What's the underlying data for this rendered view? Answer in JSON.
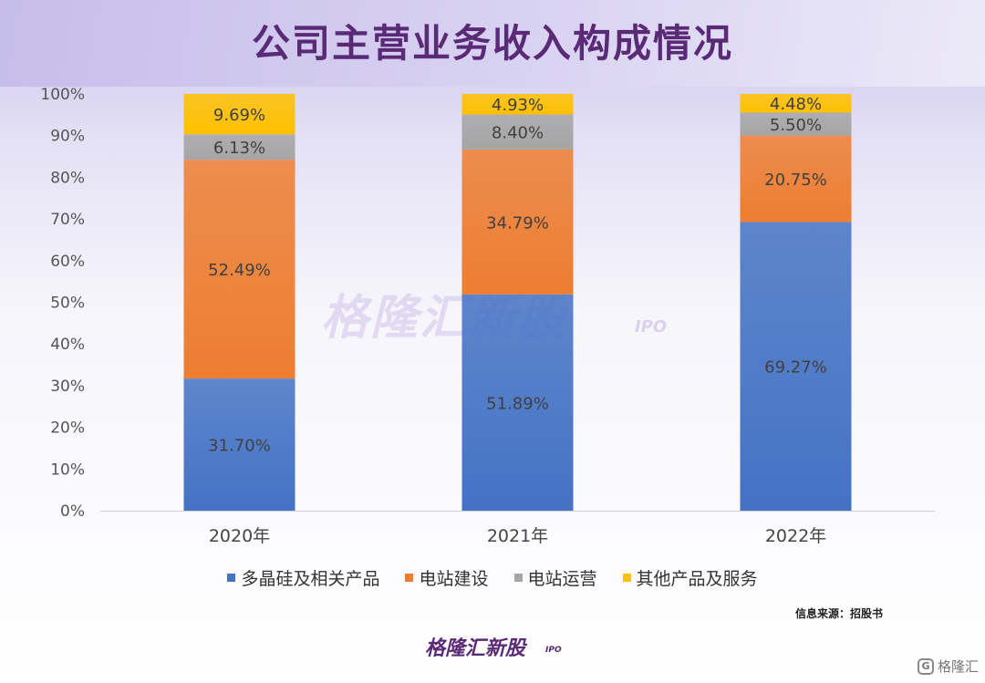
{
  "title": "公司主营业务收入构成情况",
  "chart_data": {
    "type": "bar",
    "stacked": true,
    "categories": [
      "2020年",
      "2021年",
      "2022年"
    ],
    "series": [
      {
        "name": "多晶硅及相关产品",
        "values": [
          31.7,
          51.89,
          69.27
        ],
        "color": "#4472c4",
        "labels": [
          "31.70%",
          "51.89%",
          "69.27%"
        ]
      },
      {
        "name": "电站建设",
        "values": [
          52.49,
          34.79,
          20.75
        ],
        "color": "#ed7d31",
        "labels": [
          "52.49%",
          "34.79%",
          "20.75%"
        ]
      },
      {
        "name": "电站运营",
        "values": [
          6.13,
          8.4,
          5.5
        ],
        "color": "#a5a5a5",
        "labels": [
          "6.13%",
          "8.40%",
          "5.50%"
        ]
      },
      {
        "name": "其他产品及服务",
        "values": [
          9.69,
          4.93,
          4.48
        ],
        "color": "#ffc000",
        "labels": [
          "9.69%",
          "4.93%",
          "4.48%"
        ]
      }
    ],
    "ylim": [
      0,
      100
    ],
    "yticks": [
      "0%",
      "10%",
      "20%",
      "30%",
      "40%",
      "50%",
      "60%",
      "70%",
      "80%",
      "90%",
      "100%"
    ],
    "legend_position": "bottom"
  },
  "legend": [
    {
      "label": "多晶硅及相关产品",
      "color": "#4472c4"
    },
    {
      "label": "电站建设",
      "color": "#ed7d31"
    },
    {
      "label": "电站运营",
      "color": "#a5a5a5"
    },
    {
      "label": "其他产品及服务",
      "color": "#ffc000"
    }
  ],
  "source": "信息来源：招股书",
  "watermark": {
    "main": "格隆汇新股",
    "sub": "IPO"
  },
  "logo": {
    "main": "格隆汇新股",
    "sub": "IPO"
  },
  "corner_brand": {
    "icon": "G",
    "text": "格隆汇"
  }
}
